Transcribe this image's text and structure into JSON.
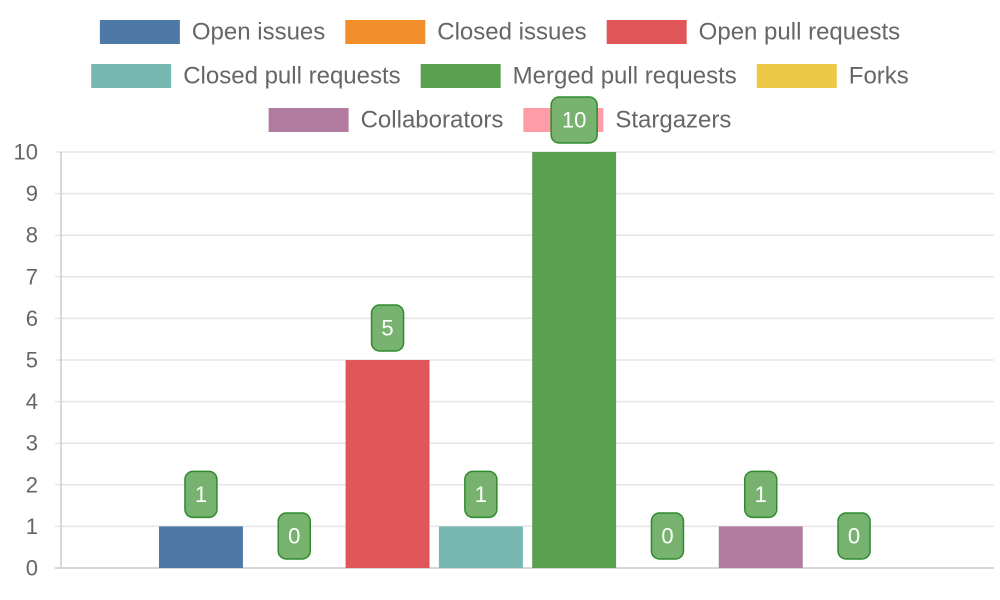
{
  "chart_data": {
    "type": "bar",
    "title": "",
    "xlabel": "",
    "ylabel": "",
    "ylim": [
      0,
      10
    ],
    "y_ticks": [
      0,
      1,
      2,
      3,
      4,
      5,
      6,
      7,
      8,
      9,
      10
    ],
    "grid": true,
    "legend_position": "top",
    "categories": [
      "Open issues",
      "Closed issues",
      "Open pull requests",
      "Closed pull requests",
      "Merged pull requests",
      "Forks",
      "Collaborators",
      "Stargazers"
    ],
    "values": [
      1,
      0,
      5,
      1,
      10,
      0,
      1,
      0
    ],
    "colors": [
      "#4e79a7",
      "#f28e2b",
      "#e15759",
      "#76b7b2",
      "#59a14f",
      "#edc948",
      "#b07aa1",
      "#ff9da7"
    ],
    "data_label_fill": "#77b36e",
    "data_label_border": "#2e8b2e",
    "grid_color": "#e5e5e5",
    "axis_color": "#cccccc"
  }
}
